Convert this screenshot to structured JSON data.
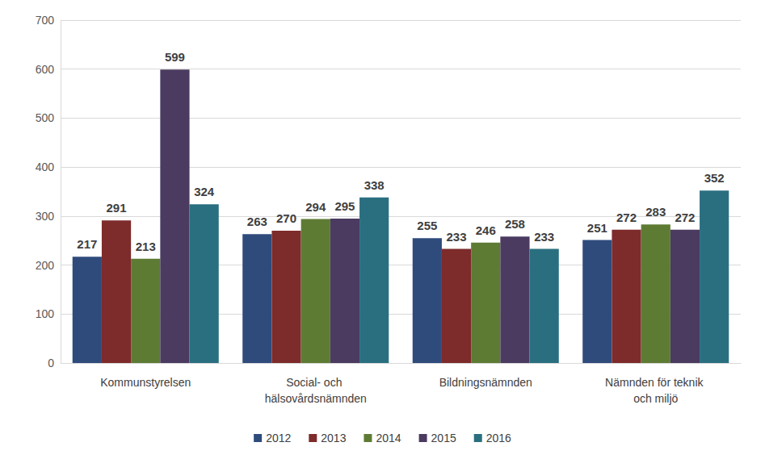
{
  "chart_data": {
    "type": "bar",
    "categories": [
      "Kommunstyrelsen",
      "Social- och hälsovårdsnämnden",
      "Bildningsnämnden",
      "Nämnden för teknik och miljö"
    ],
    "series": [
      {
        "name": "2012",
        "color": "#2F4B7C",
        "values": [
          217,
          263,
          255,
          251
        ]
      },
      {
        "name": "2013",
        "color": "#7E2B2B",
        "values": [
          291,
          270,
          233,
          272
        ]
      },
      {
        "name": "2014",
        "color": "#5E7B34",
        "values": [
          213,
          294,
          246,
          283
        ]
      },
      {
        "name": "2015",
        "color": "#4B3B60",
        "values": [
          599,
          295,
          258,
          272
        ]
      },
      {
        "name": "2016",
        "color": "#2A6F80",
        "values": [
          324,
          338,
          233,
          352
        ]
      }
    ],
    "ylim": [
      0,
      700
    ],
    "yticks": [
      0,
      100,
      200,
      300,
      400,
      500,
      600,
      700
    ],
    "grid": true,
    "legend": "bottom",
    "data_labels": true
  }
}
